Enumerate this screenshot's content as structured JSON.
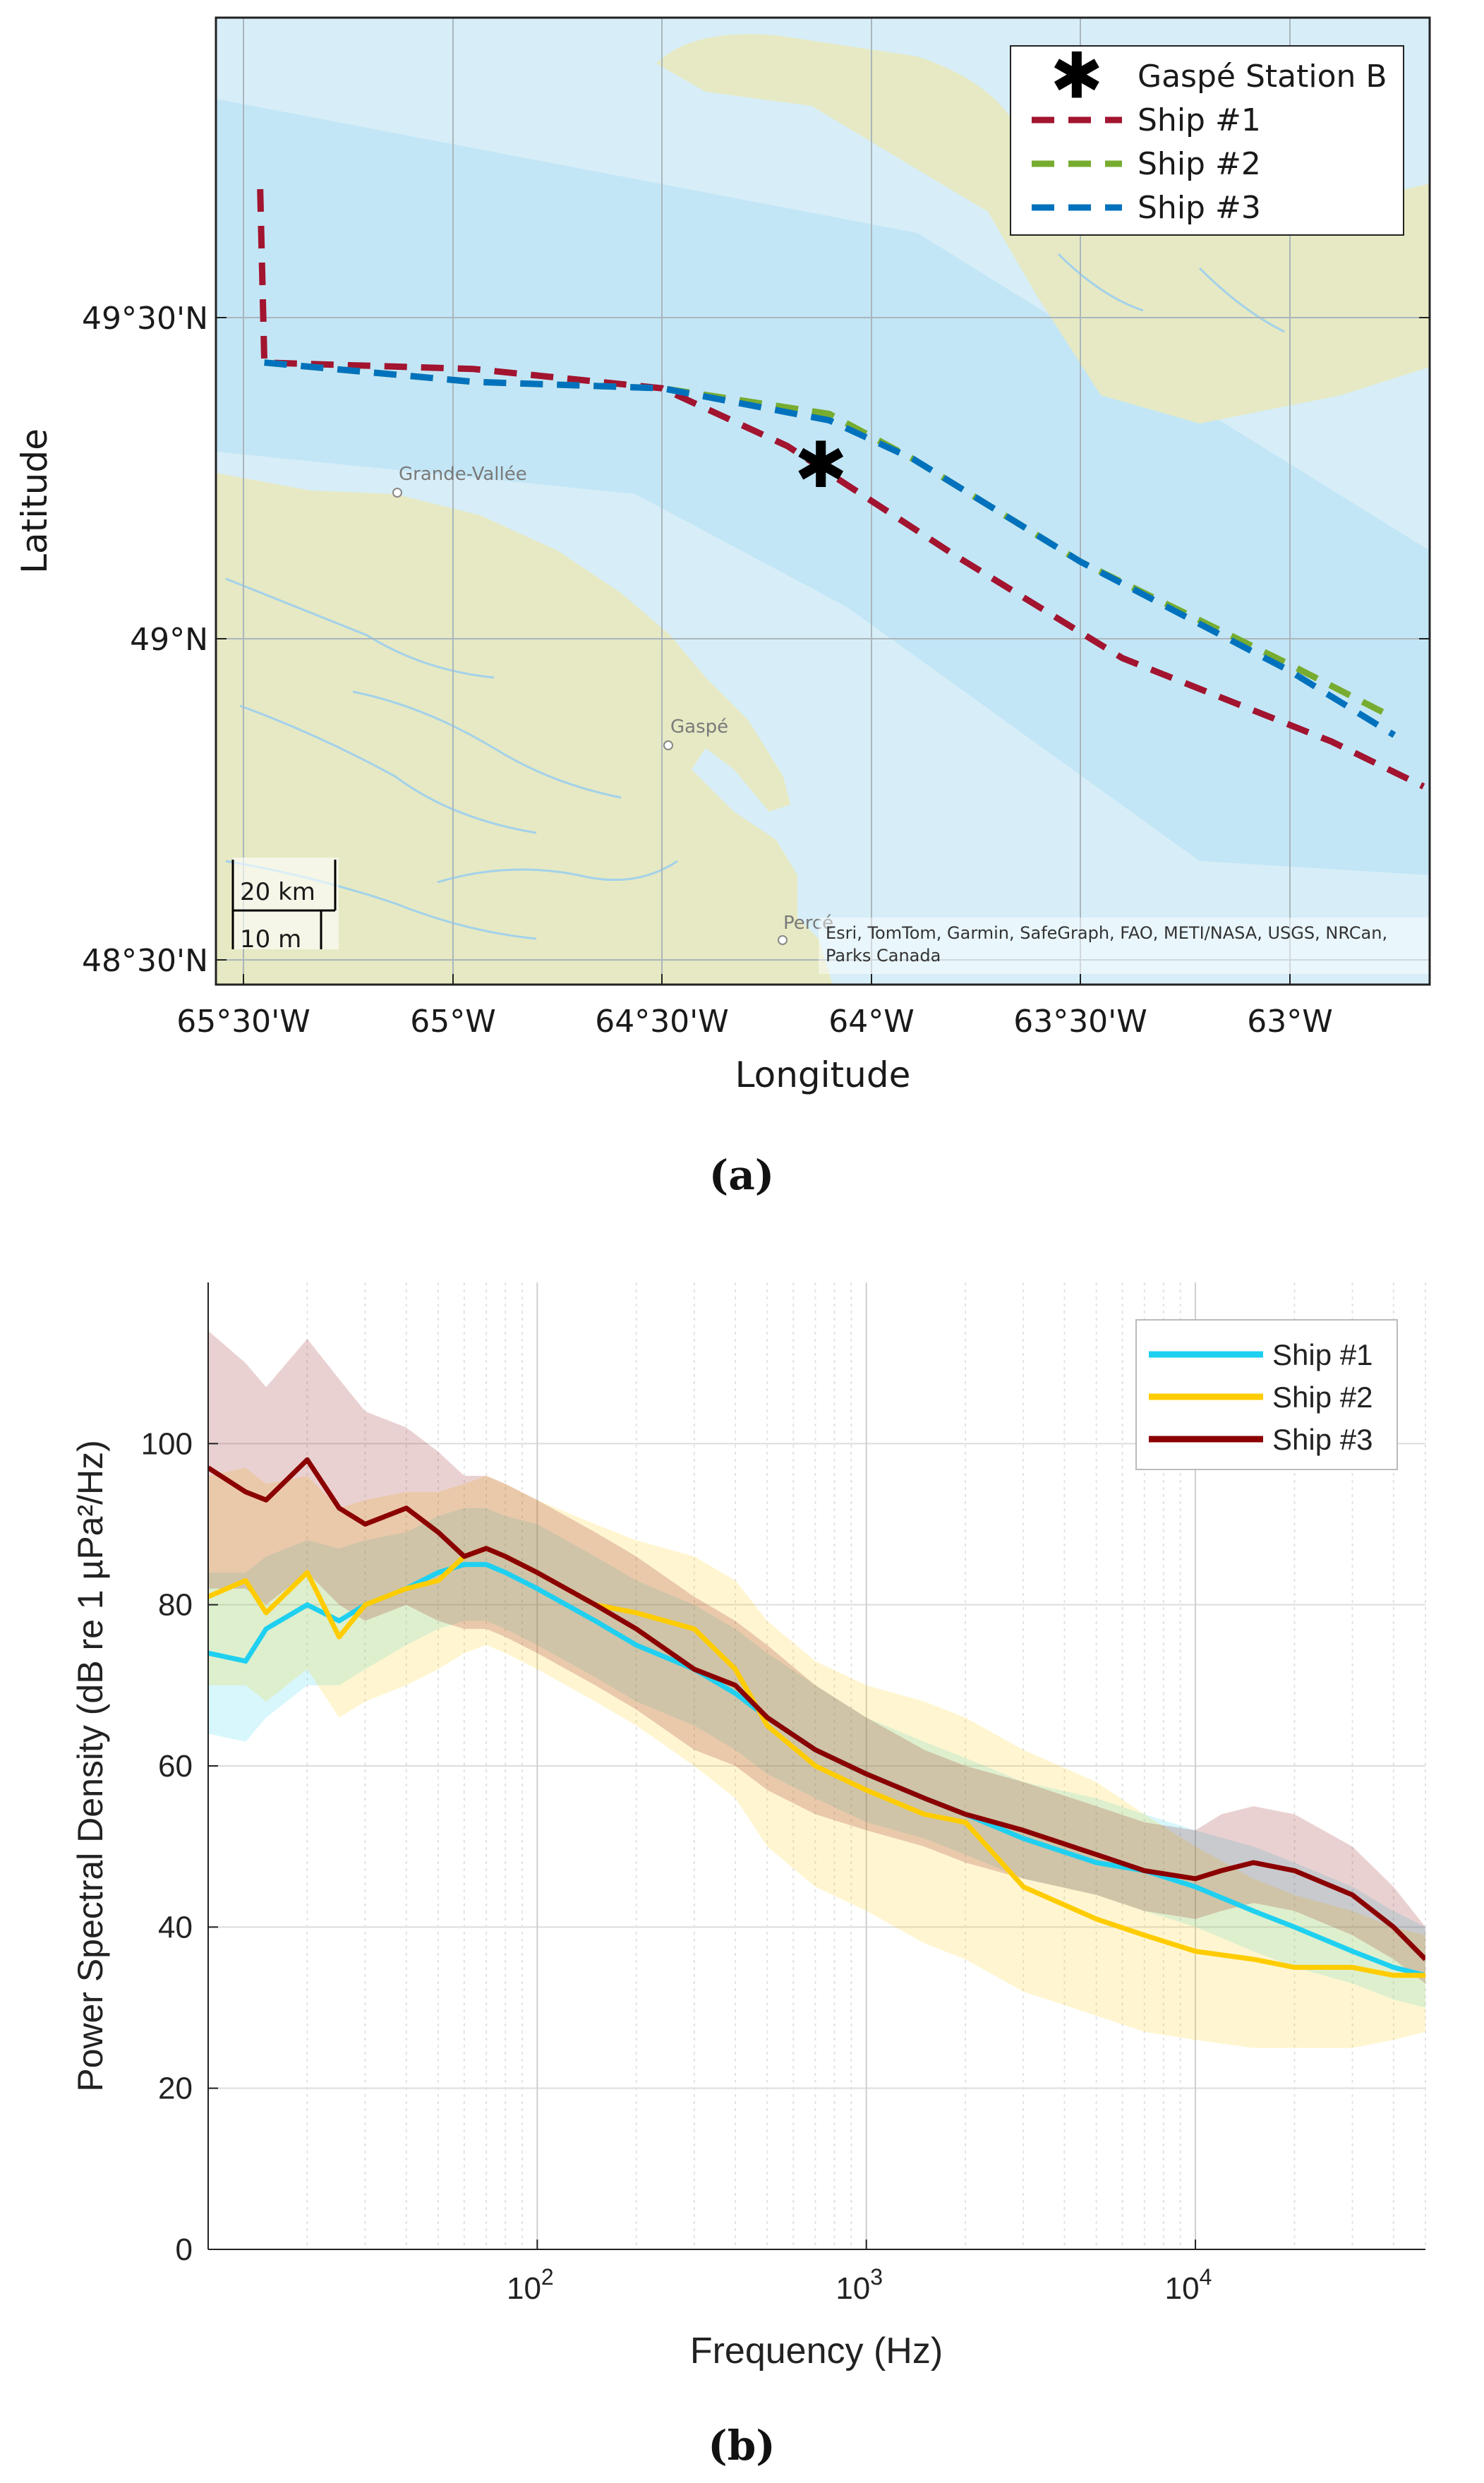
{
  "figure": {
    "caption_a": "(a)",
    "caption_b": "(b)"
  },
  "map": {
    "xlabel": "Longitude",
    "ylabel": "Latitude",
    "x_ticks": [
      "65°30'W",
      "65°W",
      "64°30'W",
      "64°W",
      "63°30'W",
      "63°W"
    ],
    "y_ticks": [
      "49°30'N",
      "49°N",
      "48°30'N"
    ],
    "place_labels": [
      "Grande-Vallée",
      "Gaspé",
      "Percé"
    ],
    "attribution_line1": "Esri, TomTom, Garmin, SafeGraph, FAO, METI/NASA, USGS, NRCan,",
    "attribution_line2": "Parks Canada",
    "scale_km": "20 km",
    "scale_m": "10 m",
    "legend": [
      {
        "label": "Gaspé Station B",
        "color": "#000000",
        "kind": "marker"
      },
      {
        "label": "Ship #1",
        "color": "#a2142f",
        "kind": "dashed"
      },
      {
        "label": "Ship #2",
        "color": "#77ac30",
        "kind": "dashed"
      },
      {
        "label": "Ship #3",
        "color": "#0072bd",
        "kind": "dashed"
      }
    ],
    "colors": {
      "water": "#d6eef8",
      "deep_water": "#c2e5f5",
      "land": "#e6e9c3",
      "rivers": "#9fd0ea"
    },
    "station": {
      "lon": -64.12,
      "lat": 49.27
    },
    "tracks": [
      {
        "name": "Ship #1",
        "color": "#a2142f",
        "points": [
          [
            -65.46,
            49.7
          ],
          [
            -65.45,
            49.43
          ],
          [
            -64.95,
            49.42
          ],
          [
            -64.5,
            49.39
          ],
          [
            -64.2,
            49.3
          ],
          [
            -63.8,
            49.13
          ],
          [
            -63.4,
            48.97
          ],
          [
            -62.9,
            48.84
          ],
          [
            -62.68,
            48.77
          ]
        ]
      },
      {
        "name": "Ship #2",
        "color": "#77ac30",
        "points": [
          [
            -65.45,
            49.43
          ],
          [
            -64.95,
            49.4
          ],
          [
            -64.5,
            49.39
          ],
          [
            -64.1,
            49.35
          ],
          [
            -63.9,
            49.28
          ],
          [
            -63.5,
            49.12
          ],
          [
            -63.0,
            48.96
          ],
          [
            -62.76,
            48.88
          ]
        ]
      },
      {
        "name": "Ship #3",
        "color": "#0072bd",
        "points": [
          [
            -65.45,
            49.43
          ],
          [
            -64.95,
            49.4
          ],
          [
            -64.5,
            49.39
          ],
          [
            -64.1,
            49.34
          ],
          [
            -63.9,
            49.28
          ],
          [
            -63.5,
            49.12
          ],
          [
            -63.0,
            48.95
          ],
          [
            -62.75,
            48.85
          ]
        ]
      }
    ]
  },
  "chart_data": {
    "type": "line",
    "title": "",
    "xlabel": "Frequency (Hz)",
    "ylabel": "Power Spectral Density (dB re 1 µPa²/Hz)",
    "xscale": "log",
    "xlim": [
      10,
      50000
    ],
    "ylim": [
      0,
      120
    ],
    "x_tick_values": [
      100,
      1000,
      10000
    ],
    "x_tick_bases": [
      "10",
      "10",
      "10"
    ],
    "x_tick_exponents": [
      "2",
      "3",
      "4"
    ],
    "y_ticks": [
      0,
      20,
      40,
      60,
      80,
      100
    ],
    "y_tick_labels": [
      "0",
      "20",
      "40",
      "60",
      "80",
      "100"
    ],
    "legend_position": "top-right",
    "series": [
      {
        "name": "Ship #1",
        "color": "#1fd0f0",
        "x": [
          10,
          13,
          15,
          20,
          25,
          30,
          40,
          50,
          60,
          70,
          80,
          100,
          150,
          200,
          300,
          400,
          500,
          700,
          1000,
          1500,
          2000,
          3000,
          5000,
          7000,
          10000,
          15000,
          20000,
          30000,
          40000,
          50000
        ],
        "y": [
          74,
          73,
          77,
          80,
          78,
          80,
          82,
          84,
          85,
          85,
          84,
          82,
          78,
          75,
          72,
          69,
          66,
          62,
          59,
          56,
          54,
          51,
          48,
          47,
          45,
          42,
          40,
          37,
          35,
          34
        ],
        "lower": [
          64,
          63,
          66,
          70,
          70,
          72,
          75,
          77,
          78,
          78,
          77,
          75,
          71,
          68,
          65,
          62,
          59,
          56,
          53,
          51,
          49,
          46,
          44,
          42,
          40,
          37,
          35,
          33,
          31,
          30
        ],
        "upper": [
          84,
          84,
          86,
          88,
          87,
          88,
          89,
          91,
          92,
          92,
          91,
          90,
          86,
          83,
          80,
          77,
          74,
          70,
          66,
          63,
          61,
          58,
          56,
          54,
          52,
          50,
          48,
          45,
          42,
          40
        ]
      },
      {
        "name": "Ship #2",
        "color": "#ffcc00",
        "x": [
          10,
          13,
          15,
          20,
          25,
          30,
          40,
          50,
          60,
          70,
          80,
          100,
          150,
          200,
          300,
          400,
          500,
          700,
          1000,
          1500,
          2000,
          3000,
          5000,
          7000,
          10000,
          15000,
          20000,
          30000,
          40000,
          50000
        ],
        "y": [
          81,
          83,
          79,
          84,
          76,
          80,
          82,
          83,
          86,
          87,
          86,
          84,
          80,
          79,
          77,
          72,
          65,
          60,
          57,
          54,
          53,
          45,
          41,
          39,
          37,
          36,
          35,
          35,
          34,
          34
        ],
        "lower": [
          70,
          70,
          68,
          72,
          66,
          68,
          70,
          72,
          74,
          75,
          74,
          72,
          68,
          65,
          60,
          56,
          50,
          45,
          42,
          38,
          36,
          32,
          29,
          27,
          26,
          25,
          25,
          25,
          26,
          27
        ],
        "upper": [
          96,
          97,
          95,
          96,
          92,
          93,
          94,
          94,
          95,
          96,
          95,
          93,
          90,
          88,
          86,
          83,
          78,
          73,
          70,
          68,
          66,
          62,
          58,
          54,
          50,
          46,
          44,
          42,
          40,
          39
        ]
      },
      {
        "name": "Ship #3",
        "color": "#8b0000",
        "x": [
          10,
          13,
          15,
          20,
          25,
          30,
          40,
          50,
          60,
          70,
          80,
          100,
          150,
          200,
          300,
          400,
          500,
          700,
          1000,
          1500,
          2000,
          3000,
          5000,
          7000,
          10000,
          12000,
          15000,
          20000,
          30000,
          40000,
          50000
        ],
        "y": [
          97,
          94,
          93,
          98,
          92,
          90,
          92,
          89,
          86,
          87,
          86,
          84,
          80,
          77,
          72,
          70,
          66,
          62,
          59,
          56,
          54,
          52,
          49,
          47,
          46,
          47,
          48,
          47,
          44,
          40,
          36
        ],
        "lower": [
          82,
          82,
          80,
          84,
          80,
          78,
          80,
          78,
          77,
          77,
          76,
          74,
          70,
          67,
          62,
          60,
          57,
          54,
          52,
          50,
          48,
          46,
          44,
          42,
          41,
          42,
          43,
          42,
          39,
          36,
          33
        ],
        "upper": [
          114,
          110,
          107,
          113,
          108,
          104,
          102,
          99,
          96,
          96,
          95,
          93,
          89,
          86,
          81,
          78,
          75,
          70,
          66,
          62,
          60,
          58,
          55,
          53,
          52,
          54,
          55,
          54,
          50,
          45,
          40
        ]
      }
    ]
  }
}
